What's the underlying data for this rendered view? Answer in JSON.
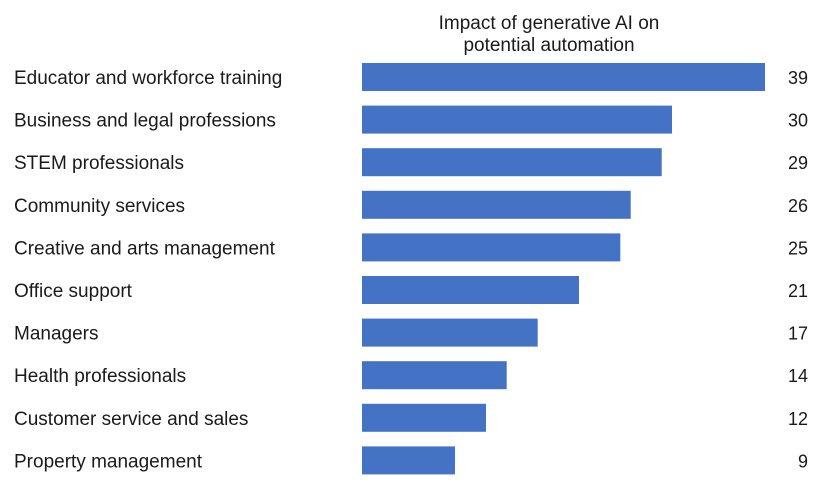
{
  "chart_data": {
    "type": "bar",
    "orientation": "horizontal",
    "title_lines": [
      "Impact of generative AI on",
      "potential automation"
    ],
    "categories": [
      "Educator and workforce training",
      "Business and legal professions",
      "STEM professionals",
      "Community services",
      "Creative and arts management",
      "Office support",
      "Managers",
      "Health professionals",
      "Customer service and sales",
      "Property management"
    ],
    "values": [
      39,
      30,
      29,
      26,
      25,
      21,
      17,
      14,
      12,
      9
    ],
    "bar_color": "#4472C4",
    "grid": false,
    "legend": "none",
    "data_labels": "right"
  }
}
